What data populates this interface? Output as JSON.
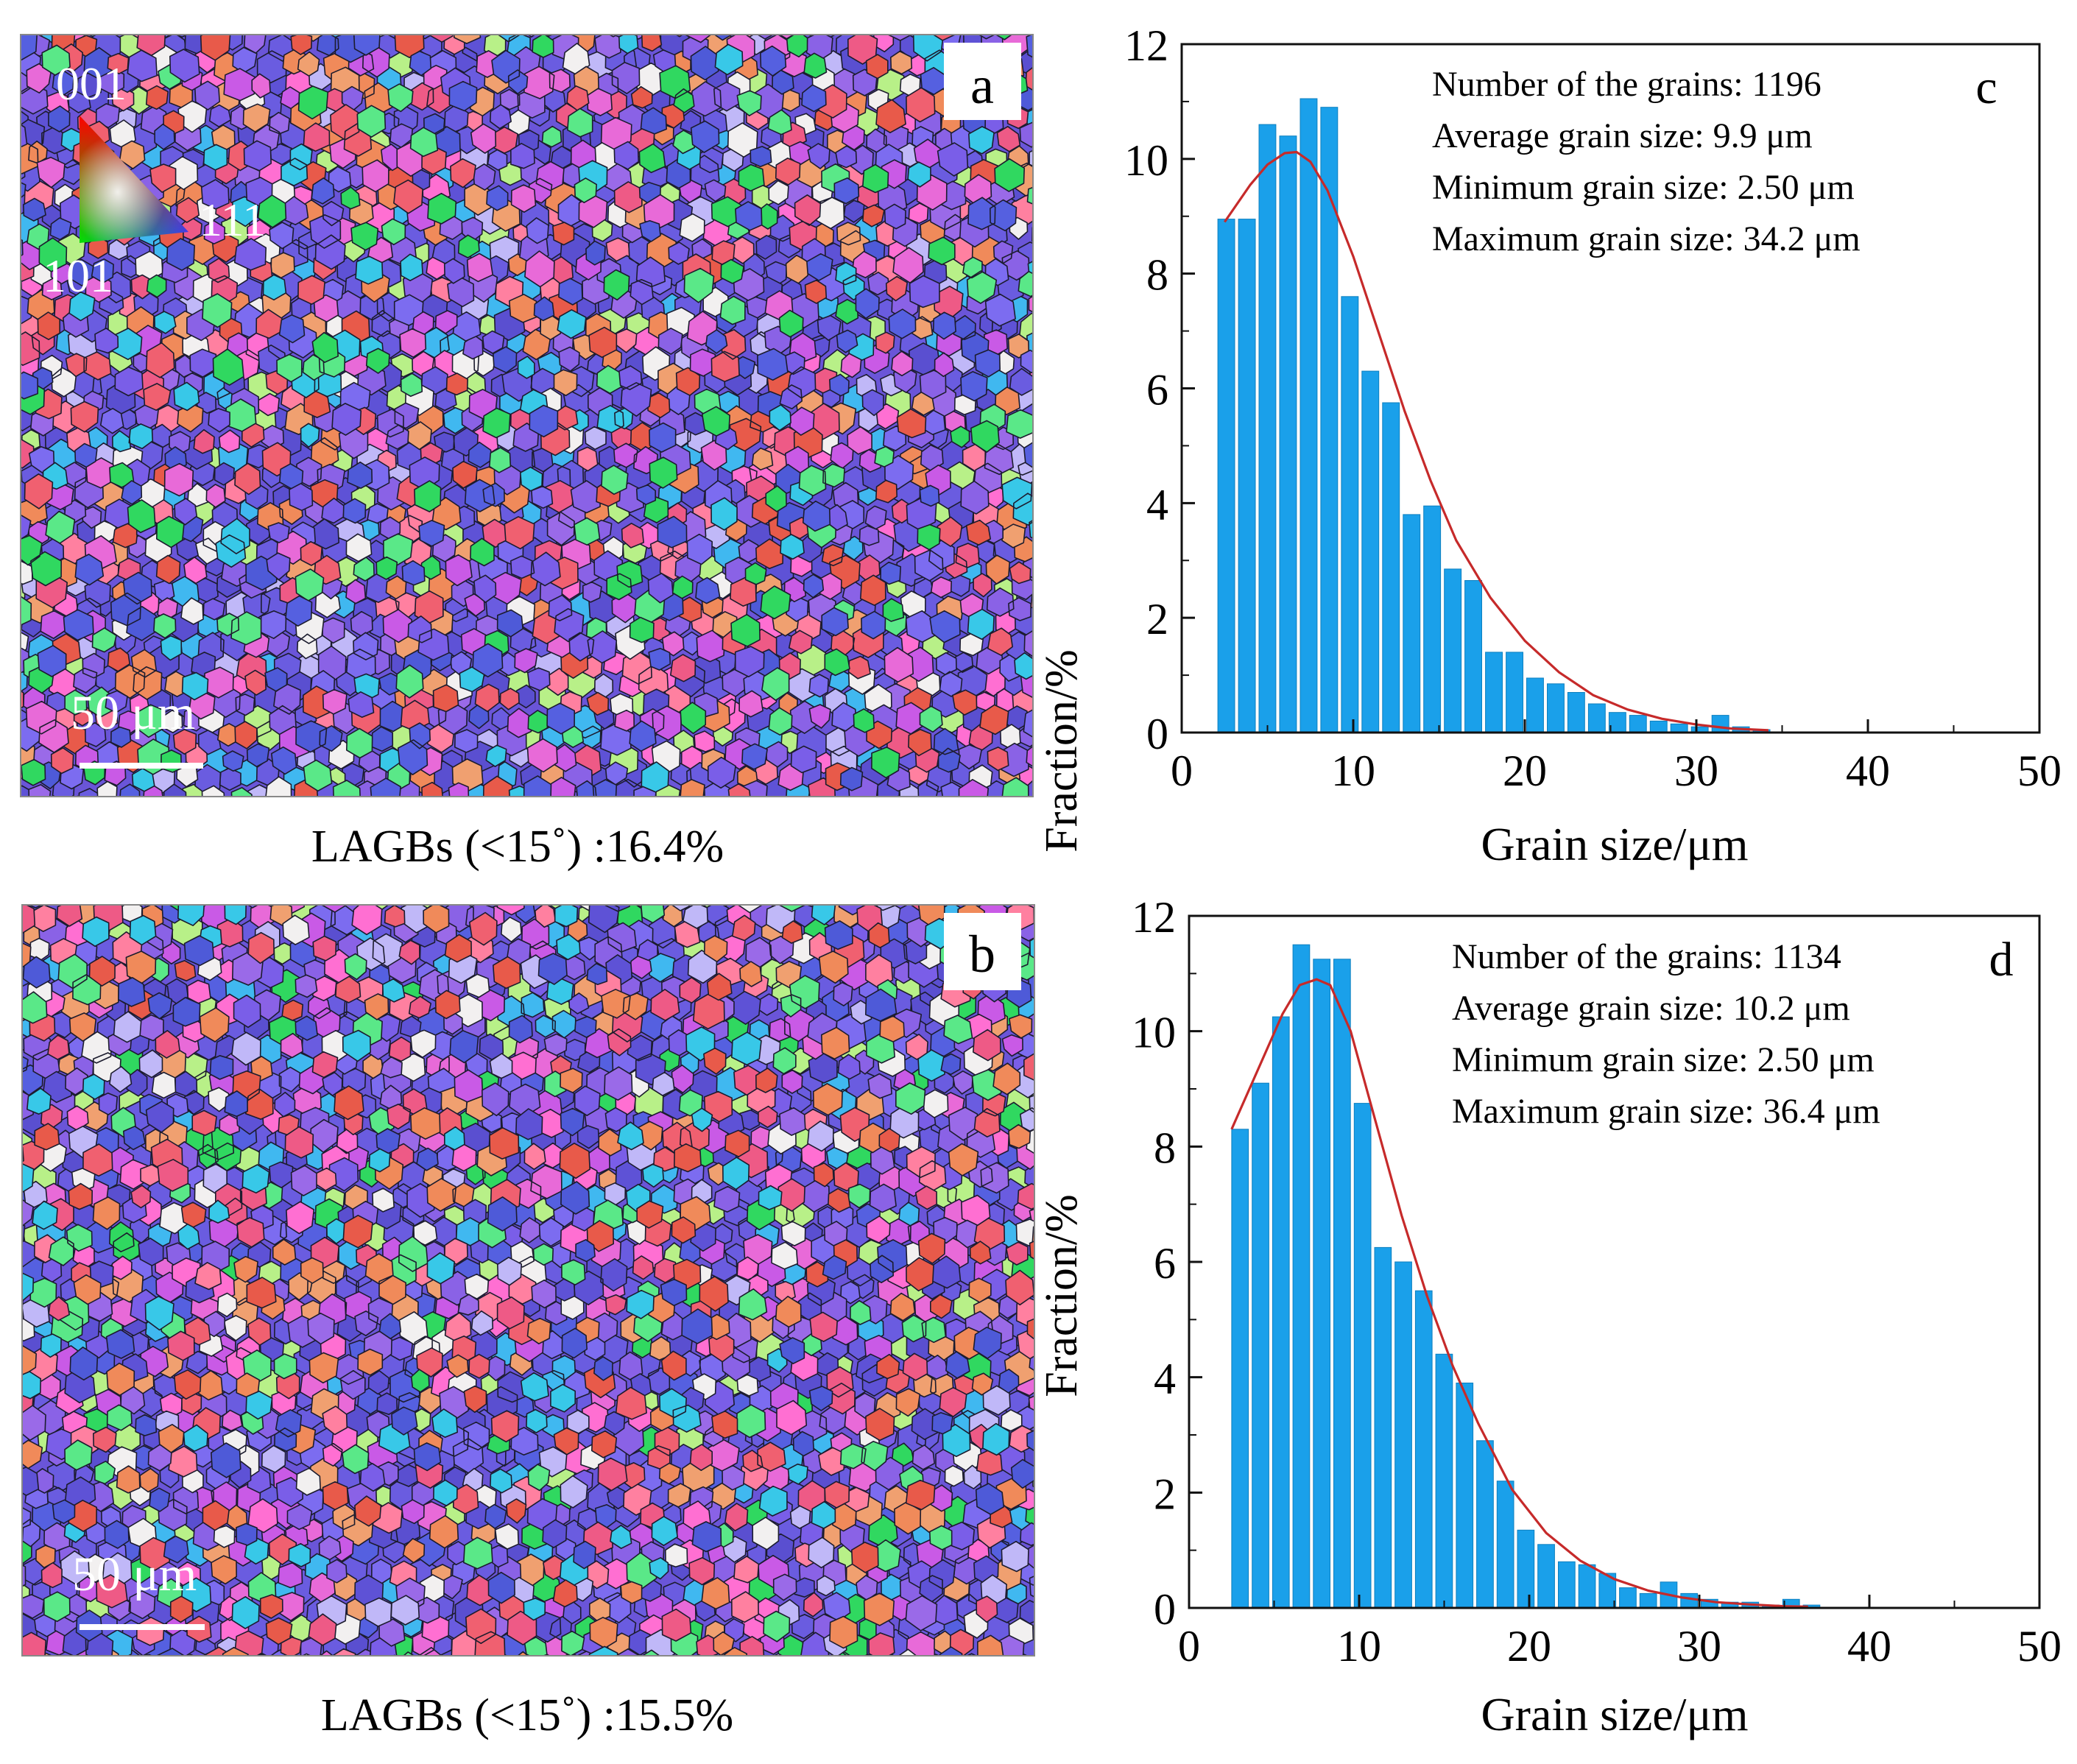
{
  "colors": {
    "bar": "#1aa0ea",
    "bar_edge": "#0d7fbf",
    "fit": "#c62a2a",
    "grain_boundary": "#1c1c2e"
  },
  "ebsd_maps": [
    {
      "panel_label": "a",
      "scale_bar": "50 μm",
      "caption": "LAGBs (<15˚) :16.4%",
      "ipf_key": {
        "top": "001",
        "bottom_left": "101",
        "right": "111"
      }
    },
    {
      "panel_label": "b",
      "scale_bar": "50 μm",
      "caption": "LAGBs (<15˚) :15.5%"
    }
  ],
  "chart_data": [
    {
      "type": "bar",
      "panel_label": "c",
      "xlabel": "Grain size/μm",
      "ylabel": "Fraction/%",
      "xlim": [
        0,
        50
      ],
      "ylim": [
        0,
        12
      ],
      "xticks": [
        0,
        10,
        20,
        30,
        40,
        50
      ],
      "yticks": [
        0,
        2,
        4,
        6,
        8,
        10,
        12
      ],
      "bin_width": 1.2,
      "x": [
        2.6,
        3.8,
        5.0,
        6.2,
        7.4,
        8.6,
        9.8,
        11.0,
        12.2,
        13.4,
        14.6,
        15.8,
        17.0,
        18.2,
        19.4,
        20.6,
        21.8,
        23.0,
        24.2,
        25.4,
        26.6,
        27.8,
        29.0,
        30.2,
        31.4,
        32.6,
        33.8
      ],
      "values": [
        8.95,
        8.95,
        10.6,
        10.4,
        11.05,
        10.9,
        7.6,
        6.3,
        5.75,
        3.8,
        3.95,
        2.85,
        2.65,
        1.4,
        1.4,
        0.95,
        0.85,
        0.7,
        0.5,
        0.35,
        0.3,
        0.2,
        0.15,
        0.1,
        0.3,
        0.1,
        0.05
      ],
      "fit_curve": {
        "name": "fit",
        "x": [
          2.5,
          4,
          5,
          6,
          6.7,
          7.5,
          8.5,
          10,
          11.5,
          13,
          14.5,
          16,
          18,
          20,
          22,
          24,
          26,
          28,
          30,
          32,
          34.2
        ],
        "y": [
          8.9,
          9.55,
          9.9,
          10.1,
          10.12,
          9.95,
          9.45,
          8.3,
          6.95,
          5.6,
          4.4,
          3.35,
          2.35,
          1.6,
          1.05,
          0.65,
          0.4,
          0.24,
          0.14,
          0.07,
          0.04
        ]
      },
      "annotations": [
        "Number of the grains: 1196",
        "Average grain size: 9.9 μm",
        "Minimum grain size: 2.50 μm",
        "Maximum grain size: 34.2 μm"
      ]
    },
    {
      "type": "bar",
      "panel_label": "d",
      "xlabel": "Grain size/μm",
      "ylabel": "Fraction/%",
      "xlim": [
        0,
        50
      ],
      "ylim": [
        0,
        12
      ],
      "xticks": [
        0,
        10,
        20,
        30,
        40,
        50
      ],
      "yticks": [
        0,
        2,
        4,
        6,
        8,
        10,
        12
      ],
      "bin_width": 1.2,
      "x": [
        3.0,
        4.2,
        5.4,
        6.6,
        7.8,
        9.0,
        10.2,
        11.4,
        12.6,
        13.8,
        15.0,
        16.2,
        17.4,
        18.6,
        19.8,
        21.0,
        22.2,
        23.4,
        24.6,
        25.8,
        27.0,
        28.2,
        29.4,
        30.6,
        31.8,
        33.0,
        34.2,
        35.4,
        36.6
      ],
      "values": [
        8.3,
        9.1,
        10.25,
        11.5,
        11.25,
        11.25,
        8.75,
        6.25,
        6.0,
        5.5,
        4.4,
        3.9,
        2.9,
        2.2,
        1.35,
        1.1,
        0.8,
        0.75,
        0.6,
        0.35,
        0.25,
        0.45,
        0.25,
        0.15,
        0.1,
        0.1,
        0.05,
        0.15,
        0.05
      ],
      "fit_curve": {
        "name": "fit",
        "x": [
          2.5,
          4,
          5.5,
          6.5,
          7.5,
          8.3,
          9.5,
          11,
          12.5,
          14,
          15.5,
          17,
          19,
          21,
          23,
          25,
          27,
          29,
          31,
          33,
          35,
          36.4
        ],
        "y": [
          8.3,
          9.3,
          10.3,
          10.8,
          10.9,
          10.8,
          10.0,
          8.4,
          6.8,
          5.4,
          4.2,
          3.2,
          2.05,
          1.3,
          0.82,
          0.5,
          0.3,
          0.18,
          0.1,
          0.06,
          0.03,
          0.02
        ]
      },
      "annotations": [
        "Number of the grains: 1134",
        "Average grain size: 10.2 μm",
        "Minimum grain size: 2.50 μm",
        "Maximum grain size: 36.4 μm"
      ]
    }
  ]
}
